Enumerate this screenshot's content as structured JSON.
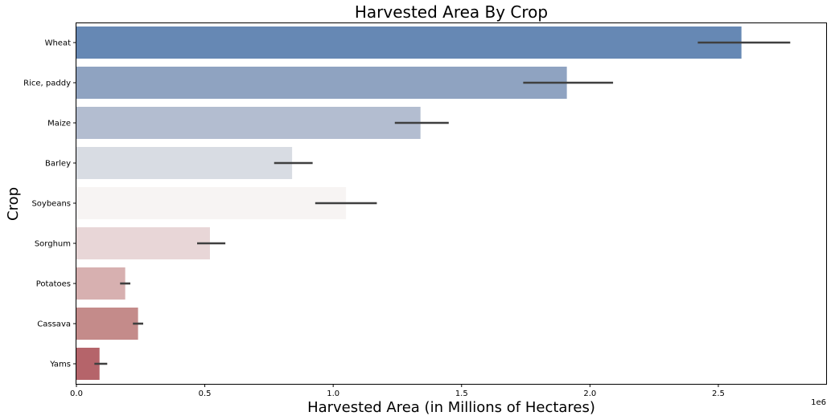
{
  "chart_data": {
    "type": "bar",
    "orientation": "horizontal",
    "title": "Harvested Area By Crop",
    "xlabel": "Harvested Area (in Millions of Hectares)",
    "ylabel": "Crop",
    "x_offset_label": "1e6",
    "xlim": [
      0,
      2.92
    ],
    "x_ticks": [
      0.0,
      0.5,
      1.0,
      1.5,
      2.0,
      2.5
    ],
    "x_tick_labels": [
      "0.0",
      "0.5",
      "1.0",
      "1.5",
      "2.0",
      "2.5"
    ],
    "grid": false,
    "categories": [
      "Wheat",
      "Rice, paddy",
      "Maize",
      "Barley",
      "Soybeans",
      "Sorghum",
      "Potatoes",
      "Cassava",
      "Yams"
    ],
    "values": [
      2.59,
      1.91,
      1.34,
      0.84,
      1.05,
      0.52,
      0.19,
      0.24,
      0.09
    ],
    "error_low": [
      2.42,
      1.74,
      1.24,
      0.77,
      0.93,
      0.47,
      0.17,
      0.22,
      0.07
    ],
    "error_high": [
      2.78,
      2.09,
      1.45,
      0.92,
      1.17,
      0.58,
      0.21,
      0.26,
      0.12
    ],
    "colors": [
      "#6688b4",
      "#8fa3c1",
      "#b3bdd0",
      "#d8dce3",
      "#f7f4f3",
      "#e8d6d7",
      "#d7b0b0",
      "#c48b8a",
      "#b5646a"
    ]
  }
}
